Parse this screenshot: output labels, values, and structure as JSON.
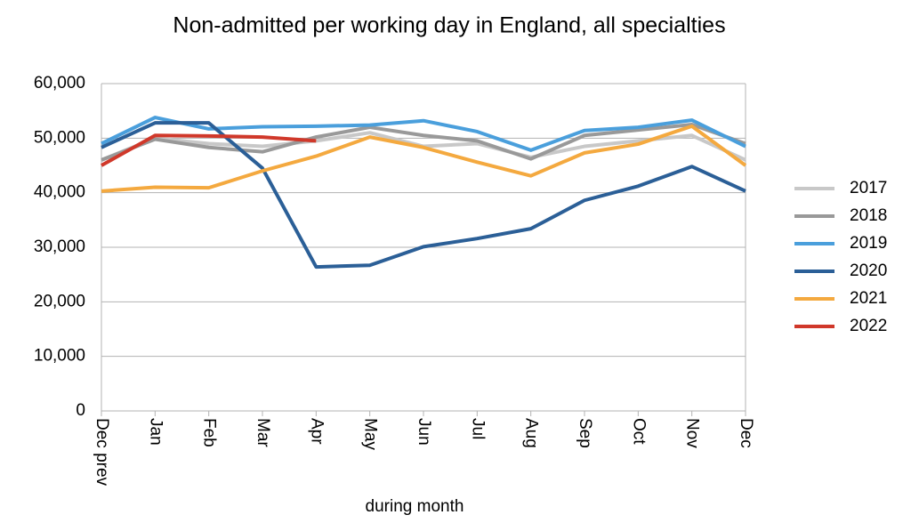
{
  "chart_data": {
    "type": "line",
    "title": "Non-admitted per working day in England, all specialties",
    "x_label": "during  month",
    "categories": [
      "Dec prev",
      "Jan",
      "Feb",
      "Mar",
      "Apr",
      "May",
      "Jun",
      "Jul",
      "Aug",
      "Sep",
      "Oct",
      "Nov",
      "Dec"
    ],
    "series": [
      {
        "name": "2017",
        "color": "#c8c8c8",
        "values": [
          46000,
          50000,
          49000,
          48500,
          49500,
          51000,
          48500,
          49000,
          46500,
          48500,
          49500,
          50500,
          46000
        ]
      },
      {
        "name": "2018",
        "color": "#999999",
        "values": [
          46000,
          49800,
          48300,
          47500,
          50200,
          52000,
          50500,
          49500,
          46200,
          50500,
          51500,
          52500,
          49000
        ]
      },
      {
        "name": "2019",
        "color": "#4a9fdc",
        "values": [
          49000,
          53800,
          51700,
          52100,
          52200,
          52400,
          53200,
          51200,
          47800,
          51400,
          52000,
          53300,
          48500
        ]
      },
      {
        "name": "2020",
        "color": "#2b5f97",
        "values": [
          48300,
          52800,
          52800,
          44500,
          26400,
          26700,
          30100,
          31600,
          33400,
          38600,
          41200,
          44800,
          40300
        ]
      },
      {
        "name": "2021",
        "color": "#f4a93f",
        "values": [
          40300,
          41000,
          40900,
          44000,
          46700,
          50200,
          48300,
          45600,
          43100,
          47300,
          48900,
          52200,
          45000
        ]
      },
      {
        "name": "2022",
        "color": "#d0382a",
        "values": [
          45000,
          50500,
          50400,
          50200,
          49500,
          null,
          null,
          null,
          null,
          null,
          null,
          null,
          null
        ]
      }
    ],
    "ylim": [
      0,
      60000
    ],
    "yticks": [
      0,
      {
        "value": 10000,
        "label": "10,000"
      },
      {
        "value": 20000,
        "label": "20,000"
      },
      {
        "value": 30000,
        "label": "30,000"
      },
      {
        "value": 40000,
        "label": "40,000"
      },
      {
        "value": 50000,
        "label": "50,000"
      },
      {
        "value": 60000,
        "label": "60,000"
      }
    ],
    "grid": true,
    "legend": "right"
  }
}
